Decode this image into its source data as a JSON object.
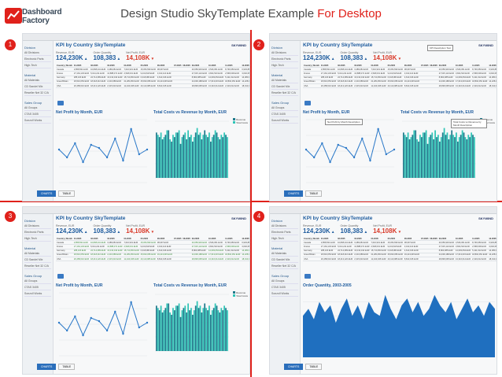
{
  "logo": {
    "line1": "Dashboard",
    "line2": "Factory"
  },
  "title": {
    "prefix": "Design Studio SkyTemplate Example ",
    "highlight": "For Desktop"
  },
  "panels": [
    {
      "id": 1,
      "badge": "1",
      "variant": "base"
    },
    {
      "id": 2,
      "badge": "2",
      "variant": "notes"
    },
    {
      "id": 3,
      "badge": "3",
      "variant": "highlight"
    },
    {
      "id": 4,
      "badge": "4",
      "variant": "area"
    }
  ],
  "dashboard": {
    "header": "KPI by Country SkyTemplate",
    "brand": "SKYWIND",
    "kpis": [
      {
        "label": "Revenue, EUR",
        "value": "124,230K",
        "arrow": "▴",
        "status": "up"
      },
      {
        "label": "Order Quantity",
        "value": "108,383",
        "arrow": "▴",
        "status": "up"
      },
      {
        "label": "Net Profit, EUR",
        "value": "14,108K",
        "arrow": "▾",
        "status": "down"
      }
    ],
    "sidebar": {
      "sections": [
        {
          "heading": "Division",
          "items": [
            "All Divisions",
            "Electronic Parts",
            "High-Tech"
          ]
        },
        {
          "heading": "Material",
          "items": [
            "All Materials",
            "CD Sandel Mix",
            "Reseller Net 32 C/A"
          ]
        },
        {
          "heading": "Sales Group",
          "items": [
            "All Groups",
            "CTAS 3405",
            "Sonzoll Works"
          ]
        }
      ]
    },
    "table": {
      "headers": [
        "Country | Month",
        "01.2005",
        "02.2005",
        "03.2005",
        "04.2005",
        "05.2005",
        "06.2005",
        "07.2005",
        "08.2005",
        "09.2005",
        "10.2005",
        "11.2005",
        "12.2005",
        "Overall Result"
      ],
      "rows": [
        [
          "Canada",
          "2,858,531 EUR",
          "10,808,241 EUR",
          "3,489,081 EUR",
          "7,010,931 EUR",
          "15,054,593 EUR",
          "38,097 EUR",
          "",
          "",
          "20,659,933 EUR",
          "3,526,051 EUR",
          "8,736,950 EUR",
          "6,933,883 EUR",
          "124,230,293 EUR"
        ],
        [
          "France",
          "27,164,133 EUR",
          "5,014,211 EUR",
          "10,888,371 EUR",
          "2,548,031 EUR",
          "9,219,618 EUR",
          "3,013,110 EUR",
          "",
          "",
          "27,615,124 EUR",
          "3,844,543 EUR",
          "2,568,009 EUR",
          "3,640,088 EUR",
          "212,808,088 EUR"
        ],
        [
          "Germany",
          "285,115 EUR",
          "24,714,089 EUR",
          "16,313,010 EUR",
          "15,710,053 EUR",
          "6,318,080 EUR",
          "4,613,016 EUR",
          "",
          "",
          "8,803,085 EUR",
          "14,093,054 EUR",
          "5,411,012 EUR",
          "14,380,045 EUR",
          "183,040,035 EUR"
        ],
        [
          "Great Britain",
          "29,510,053 EUR",
          "18,318,410 EUR",
          "2,210,089 EUR",
          "21,284,053 EUR",
          "25,810,056 EUR",
          "19,413,045 EUR",
          "",
          "",
          "24,039,188 EUR",
          "17,613,015 EUR",
          "18,804,051 EUR",
          "14,228,007 EUR",
          "496,812,018 EUR"
        ],
        [
          "USA",
          "20,458,010 EUR",
          "18,413,120 EUR",
          "2,315,010 EUR",
          "11,440,045 EUR",
          "20,110,086 EUR",
          "8,813,015 EUR",
          "",
          "",
          "28,848,095 EUR",
          "13,316,014 EUR",
          "2,319,012 EUR",
          "18,013,030 EUR",
          "204,143,012 EUR"
        ]
      ]
    },
    "chart_line_title": "Net Profit by Month, EUR",
    "chart_bar_title": "Total Costs vs Revenue by Month, EUR",
    "chart_area_title": "Order Quantity, 2003-2005",
    "bar_legend": [
      "Revenue",
      "Total Costs"
    ],
    "buttons": {
      "primary": "CHARTS",
      "secondary": "TABLE"
    },
    "notes": {
      "line": "Net Profit by Month Description",
      "bar": "Total Costs vs Revenue by Month Description",
      "kpi": "KPI Description Text"
    }
  },
  "chart_data": [
    {
      "type": "line",
      "title": "Net Profit by Month, EUR",
      "values": [
        2.1,
        1.6,
        2.5,
        1.3,
        2.4,
        2.2,
        1.6,
        2.8,
        1.4,
        3.4,
        1.8,
        2.1
      ],
      "ylim": [
        0,
        4
      ]
    },
    {
      "type": "bar",
      "title": "Total Costs vs Revenue by Month, EUR",
      "series": [
        {
          "name": "Revenue",
          "color": "#1f7a8c",
          "values": [
            20,
            18,
            17,
            19,
            21,
            16,
            18,
            20,
            15,
            19,
            17,
            18,
            16,
            20,
            19,
            17,
            21,
            18,
            16,
            19,
            20,
            17,
            18,
            19
          ]
        },
        {
          "name": "Total Costs",
          "color": "#2ec4b6",
          "values": [
            19,
            20,
            18,
            21,
            17,
            19,
            20,
            21,
            18,
            20,
            21,
            19,
            18,
            22,
            20,
            19,
            19,
            20,
            18,
            21,
            18,
            19,
            20,
            18
          ]
        }
      ],
      "ylim": [
        0,
        25
      ]
    },
    {
      "type": "area",
      "title": "Order Quantity, 2003-2005",
      "values": [
        12,
        14,
        11,
        16,
        13,
        15,
        10,
        14,
        17,
        12,
        15,
        11,
        16,
        13,
        12,
        18,
        14,
        11,
        15,
        17,
        13,
        16,
        12,
        14,
        18,
        15,
        13,
        16,
        11,
        14,
        17,
        13,
        15,
        12,
        16,
        14
      ],
      "ylim": [
        0,
        20
      ]
    }
  ]
}
